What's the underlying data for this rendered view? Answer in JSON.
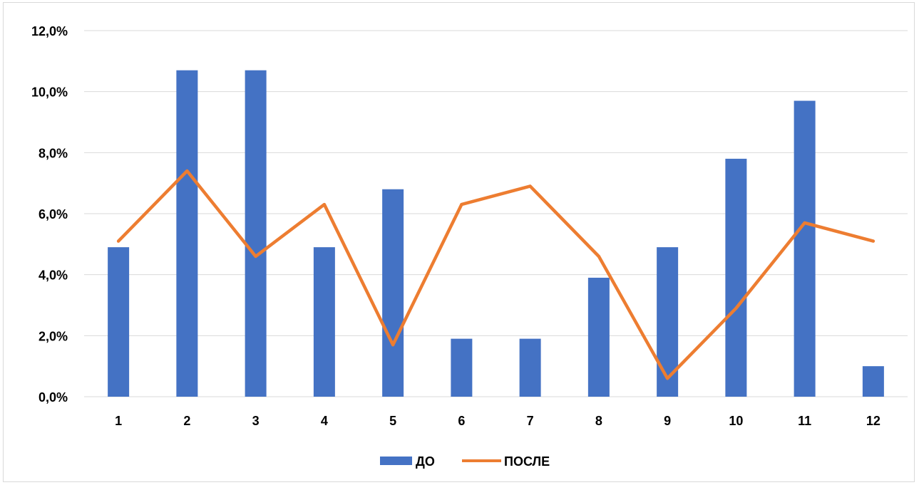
{
  "chart_data": {
    "type": "bar",
    "categories": [
      "1",
      "2",
      "3",
      "4",
      "5",
      "6",
      "7",
      "8",
      "9",
      "10",
      "11",
      "12"
    ],
    "series": [
      {
        "name": "ДО",
        "type": "bar",
        "color": "#4472C4",
        "values": [
          4.9,
          10.7,
          10.7,
          4.9,
          6.8,
          1.9,
          1.9,
          3.9,
          4.9,
          7.8,
          9.7,
          1.0
        ]
      },
      {
        "name": "ПОСЛЕ",
        "type": "line",
        "color": "#ED7D31",
        "values": [
          5.1,
          7.4,
          4.6,
          6.3,
          1.7,
          6.3,
          6.9,
          4.6,
          0.6,
          2.9,
          5.7,
          5.1
        ]
      }
    ],
    "y_tick_labels": [
      "0,0%",
      "2,0%",
      "4,0%",
      "6,0%",
      "8,0%",
      "10,0%",
      "12,0%"
    ],
    "ylim": [
      0,
      12
    ],
    "y_step": 2,
    "grid": true,
    "legend_position": "bottom"
  }
}
